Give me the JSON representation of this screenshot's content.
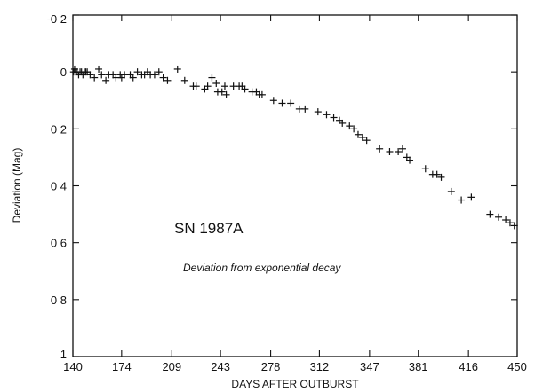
{
  "chart_data": {
    "type": "scatter",
    "xlabel": "DAYS AFTER OUTBURST",
    "ylabel": "Deviation (Mag)",
    "xlim": [
      140,
      450
    ],
    "ylim": [
      -0.2,
      1
    ],
    "y_inverted": true,
    "grid": false,
    "marker": "plus",
    "x_ticks": [
      140,
      174,
      209,
      243,
      278,
      312,
      347,
      381,
      416,
      450
    ],
    "x_tick_labels": [
      "140",
      "174",
      "209",
      "243",
      "278",
      "312",
      "347",
      "381",
      "416",
      "450"
    ],
    "y_ticks": [
      -0.2,
      0,
      0.2,
      0.4,
      0.6,
      0.8,
      1
    ],
    "y_tick_labels": [
      "-0 2",
      "0",
      "0 2",
      "0 4",
      "0 6",
      "0 8",
      "1"
    ],
    "annotations": [
      "SN 1987A",
      "Deviation from exponential decay"
    ],
    "series": [
      {
        "x": [
          140.5,
          141.2,
          142,
          143,
          144,
          145,
          146,
          147,
          148,
          149,
          150,
          152,
          155,
          158,
          160,
          163,
          165,
          168,
          170,
          173,
          174,
          176,
          180,
          182,
          185,
          188,
          190,
          192,
          194,
          197,
          200,
          203,
          206,
          213,
          218,
          224,
          226,
          232,
          234,
          237,
          240,
          241,
          244,
          246,
          247,
          252,
          256,
          258,
          260,
          265,
          268,
          270,
          272,
          280,
          286,
          292,
          298,
          302,
          311,
          317,
          322,
          326,
          328,
          333,
          336,
          339,
          342,
          345,
          354,
          361,
          367,
          370,
          373,
          375,
          386,
          391,
          394,
          397,
          404,
          411,
          418,
          431,
          437,
          442,
          445,
          448
        ],
        "y": [
          0.0,
          -0.01,
          0.0,
          0.0,
          0.01,
          0.0,
          0.0,
          0.01,
          0.0,
          0.0,
          0.0,
          0.01,
          0.02,
          -0.01,
          0.01,
          0.03,
          0.01,
          0.01,
          0.02,
          0.01,
          0.02,
          0.01,
          0.01,
          0.02,
          0.0,
          0.01,
          0.01,
          0.0,
          0.01,
          0.01,
          0.0,
          0.02,
          0.03,
          -0.01,
          0.03,
          0.05,
          0.05,
          0.06,
          0.05,
          0.02,
          0.04,
          0.07,
          0.07,
          0.05,
          0.08,
          0.05,
          0.05,
          0.05,
          0.06,
          0.07,
          0.07,
          0.08,
          0.08,
          0.1,
          0.11,
          0.11,
          0.13,
          0.13,
          0.14,
          0.15,
          0.16,
          0.17,
          0.18,
          0.19,
          0.2,
          0.22,
          0.23,
          0.24,
          0.27,
          0.28,
          0.28,
          0.27,
          0.3,
          0.31,
          0.34,
          0.36,
          0.36,
          0.37,
          0.42,
          0.45,
          0.44,
          0.5,
          0.51,
          0.52,
          0.53,
          0.54
        ]
      }
    ]
  }
}
